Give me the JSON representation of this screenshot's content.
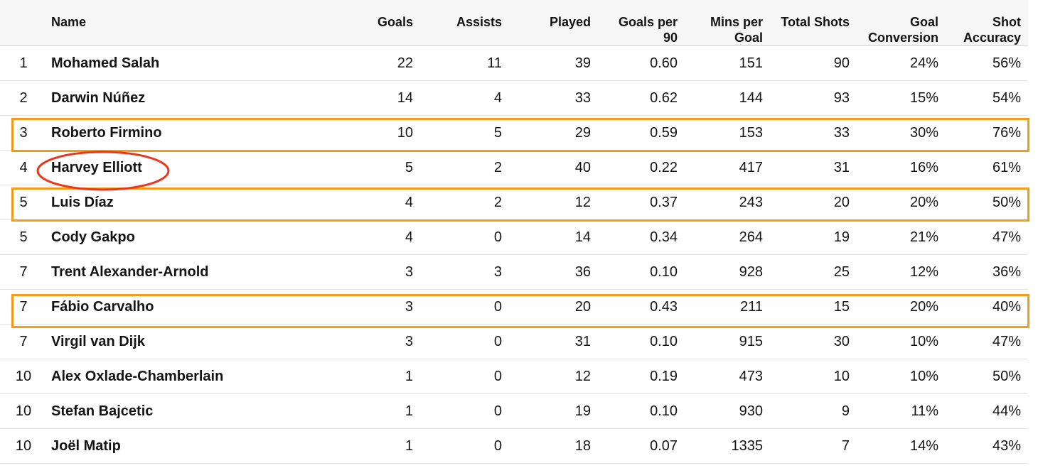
{
  "table": {
    "headers": {
      "rank": "",
      "name": "Name",
      "goals": "Goals",
      "assists": "Assists",
      "played": "Played",
      "goals_per_90": "Goals per 90",
      "mins_per_goal": "Mins per Goal",
      "total_shots": "Total Shots",
      "goal_conversion": "Goal Conversion",
      "shot_accuracy": "Shot Accuracy"
    },
    "rows": [
      {
        "rank": "1",
        "name": "Mohamed Salah",
        "goals": "22",
        "assists": "11",
        "played": "39",
        "goals_per_90": "0.60",
        "mins_per_goal": "151",
        "total_shots": "90",
        "goal_conversion": "24%",
        "shot_accuracy": "56%"
      },
      {
        "rank": "2",
        "name": "Darwin Núñez",
        "goals": "14",
        "assists": "4",
        "played": "33",
        "goals_per_90": "0.62",
        "mins_per_goal": "144",
        "total_shots": "93",
        "goal_conversion": "15%",
        "shot_accuracy": "54%"
      },
      {
        "rank": "3",
        "name": "Roberto Firmino",
        "goals": "10",
        "assists": "5",
        "played": "29",
        "goals_per_90": "0.59",
        "mins_per_goal": "153",
        "total_shots": "33",
        "goal_conversion": "30%",
        "shot_accuracy": "76%"
      },
      {
        "rank": "4",
        "name": "Harvey Elliott",
        "goals": "5",
        "assists": "2",
        "played": "40",
        "goals_per_90": "0.22",
        "mins_per_goal": "417",
        "total_shots": "31",
        "goal_conversion": "16%",
        "shot_accuracy": "61%"
      },
      {
        "rank": "5",
        "name": "Luis Díaz",
        "goals": "4",
        "assists": "2",
        "played": "12",
        "goals_per_90": "0.37",
        "mins_per_goal": "243",
        "total_shots": "20",
        "goal_conversion": "20%",
        "shot_accuracy": "50%"
      },
      {
        "rank": "5",
        "name": "Cody Gakpo",
        "goals": "4",
        "assists": "0",
        "played": "14",
        "goals_per_90": "0.34",
        "mins_per_goal": "264",
        "total_shots": "19",
        "goal_conversion": "21%",
        "shot_accuracy": "47%"
      },
      {
        "rank": "7",
        "name": "Trent Alexander-Arnold",
        "goals": "3",
        "assists": "3",
        "played": "36",
        "goals_per_90": "0.10",
        "mins_per_goal": "928",
        "total_shots": "25",
        "goal_conversion": "12%",
        "shot_accuracy": "36%"
      },
      {
        "rank": "7",
        "name": "Fábio Carvalho",
        "goals": "3",
        "assists": "0",
        "played": "20",
        "goals_per_90": "0.43",
        "mins_per_goal": "211",
        "total_shots": "15",
        "goal_conversion": "20%",
        "shot_accuracy": "40%"
      },
      {
        "rank": "7",
        "name": "Virgil van Dijk",
        "goals": "3",
        "assists": "0",
        "played": "31",
        "goals_per_90": "0.10",
        "mins_per_goal": "915",
        "total_shots": "30",
        "goal_conversion": "10%",
        "shot_accuracy": "47%"
      },
      {
        "rank": "10",
        "name": "Alex Oxlade-Chamberlain",
        "goals": "1",
        "assists": "0",
        "played": "12",
        "goals_per_90": "0.19",
        "mins_per_goal": "473",
        "total_shots": "10",
        "goal_conversion": "10%",
        "shot_accuracy": "50%"
      },
      {
        "rank": "10",
        "name": "Stefan Bajcetic",
        "goals": "1",
        "assists": "0",
        "played": "19",
        "goals_per_90": "0.10",
        "mins_per_goal": "930",
        "total_shots": "9",
        "goal_conversion": "11%",
        "shot_accuracy": "44%"
      },
      {
        "rank": "10",
        "name": "Joël Matip",
        "goals": "1",
        "assists": "0",
        "played": "18",
        "goals_per_90": "0.07",
        "mins_per_goal": "1335",
        "total_shots": "7",
        "goal_conversion": "14%",
        "shot_accuracy": "43%"
      }
    ]
  },
  "annotations": {
    "box_color": "#f39c1b",
    "circle_color": "#e8391d",
    "boxed_players": [
      "Roberto Firmino",
      "Luis Díaz",
      "Fábio Carvalho"
    ],
    "circled_player": "Harvey Elliott"
  }
}
